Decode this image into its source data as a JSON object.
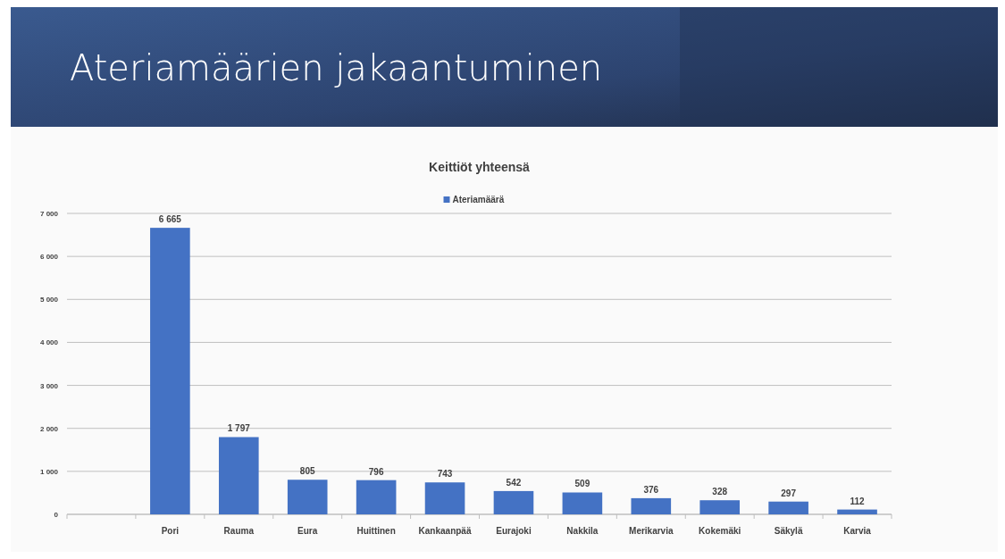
{
  "chart_data": {
    "type": "bar",
    "title": "Ateriamäärien jakaantuminen",
    "subtitle": "Keittiöt yhteensä",
    "categories": [
      null,
      "Pori",
      "Rauma",
      "Eura",
      "Huittinen",
      "Kankaanpää",
      "Eurajoki",
      "Nakkila",
      "Merikarvia",
      "Kokemäki",
      "Säkylä",
      "Karvia"
    ],
    "series": [
      {
        "name": "Ateriamäärä",
        "color": "#4472c4",
        "values": [
          null,
          6665,
          1797,
          805,
          796,
          743,
          542,
          509,
          376,
          328,
          297,
          112
        ],
        "value_labels": [
          null,
          "6 665",
          "1 797",
          "805",
          "796",
          "743",
          "542",
          "509",
          "376",
          "328",
          "297",
          "112"
        ]
      }
    ],
    "ylim": [
      0,
      7000
    ],
    "yticks": [
      0,
      {
        "value": 1000,
        "label": "1 000"
      },
      {
        "value": 2000,
        "label": "2 000"
      },
      {
        "value": 3000,
        "label": "3 000"
      },
      {
        "value": 4000,
        "label": "4 000"
      },
      {
        "value": 5000,
        "label": "5 000"
      },
      {
        "value": 6000,
        "label": "6 000"
      },
      {
        "value": 7000,
        "label": "7 000"
      }
    ],
    "grid": "y",
    "legend": "top"
  }
}
